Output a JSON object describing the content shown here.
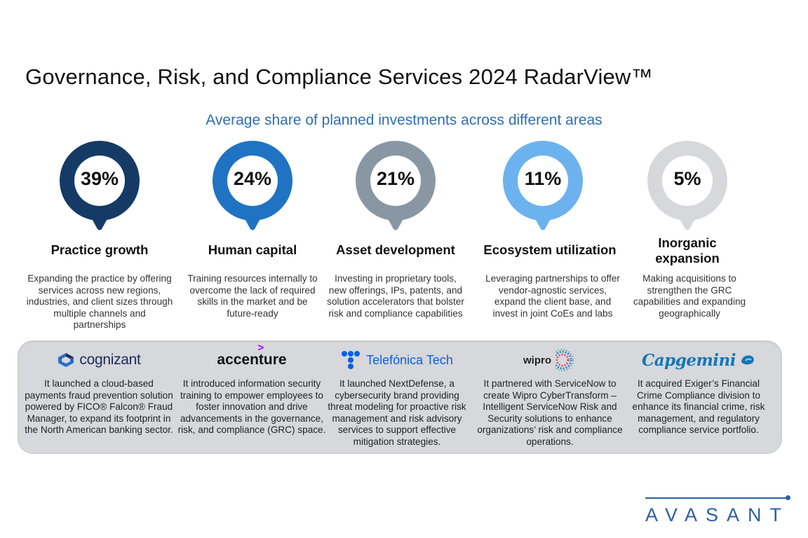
{
  "title": "Governance, Risk, and Compliance Services 2024 RadarView™",
  "subtitle": "Average share of planned investments across different areas",
  "chart_data": {
    "type": "pie",
    "title": "Average share of planned investments across different areas",
    "unit": "%",
    "categories": [
      "Practice growth",
      "Human capital",
      "Asset development",
      "Ecosystem utilization",
      "Inorganic expansion"
    ],
    "values": [
      39,
      24,
      21,
      11,
      5
    ],
    "labels": [
      "39%",
      "24%",
      "21%",
      "11%",
      "5%"
    ],
    "colors": [
      "#163a66",
      "#1f73c2",
      "#8997a4",
      "#6cb2ef",
      "#d6d8db"
    ]
  },
  "areas": [
    {
      "name": "Practice growth",
      "value": "39%",
      "description": "Expanding the practice by offering services across new regions, industries, and client sizes through multiple channels and partnerships"
    },
    {
      "name": "Human capital",
      "value": "24%",
      "description": "Training resources internally to overcome the lack of required skills in the market and be future-ready"
    },
    {
      "name": "Asset development",
      "value": "21%",
      "description": "Investing in proprietary tools, new offerings, IPs, patents, and solution accelerators that bolster risk and compliance capabilities"
    },
    {
      "name": "Ecosystem utilization",
      "value": "11%",
      "description": "Leveraging partnerships to offer vendor-agnostic services, expand the client base, and invest in joint CoEs and labs"
    },
    {
      "name": "Inorganic expansion",
      "value": "5%",
      "description": "Making acquisitions to strengthen the GRC capabilities and expanding geographically"
    }
  ],
  "vendors": [
    {
      "logo": "cognizant",
      "description": "It launched a cloud-based payments fraud prevention solution powered by FICO® Falcon® Fraud Manager, to expand its footprint in the North American banking sector."
    },
    {
      "logo": "accenture",
      "description": "It introduced information security training to empower employees to foster innovation and drive advancements in the governance, risk, and compliance (GRC) space."
    },
    {
      "logo": "Telefónica Tech",
      "description": "It launched NextDefense, a cybersecurity brand providing threat modeling for proactive risk management and risk advisory services to support effective mitigation strategies."
    },
    {
      "logo": "wipro",
      "description": "It partnered with ServiceNow to create Wipro CyberTransform – Intelligent ServiceNow Risk and Security solutions to enhance organizations’ risk and compliance operations."
    },
    {
      "logo": "Capgemini",
      "description": "It acquired Exiger’s Financial Crime Compliance division to enhance its financial crime, risk management, and regulatory compliance service portfolio."
    }
  ],
  "brand": "AVASANT"
}
